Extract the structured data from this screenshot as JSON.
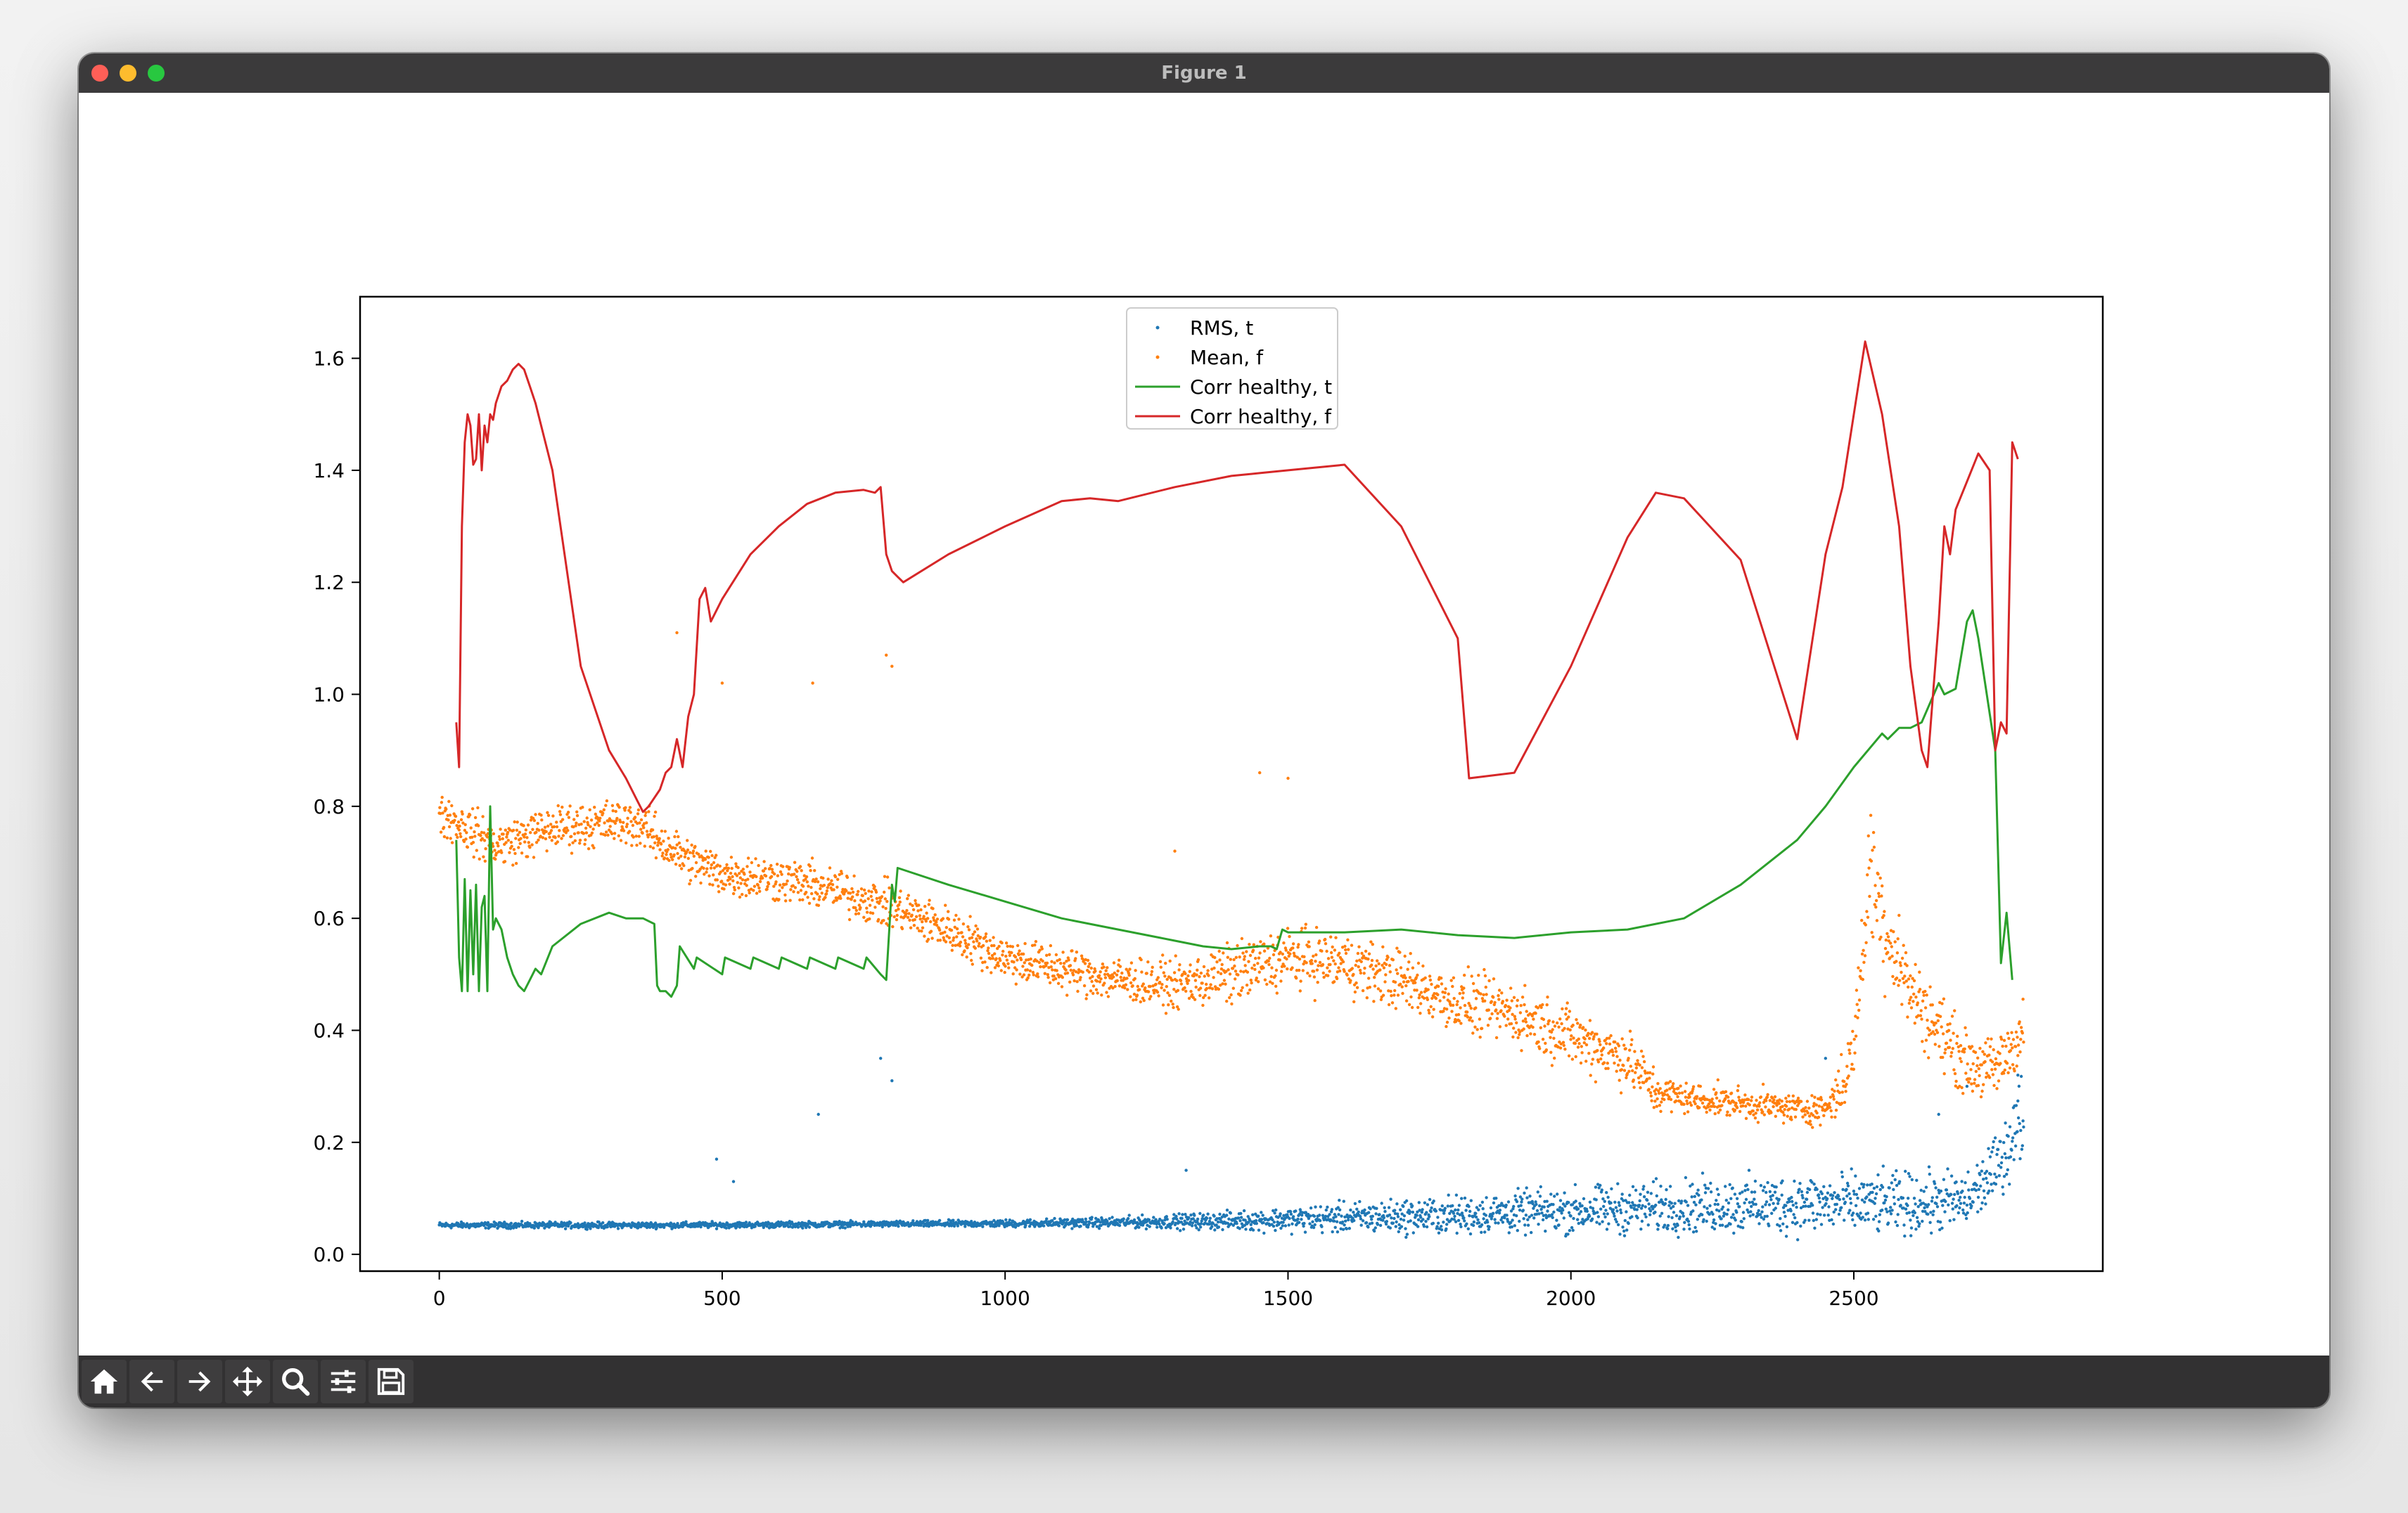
{
  "window": {
    "title": "Figure 1"
  },
  "toolbar": {
    "tools": [
      {
        "name": "home-icon"
      },
      {
        "name": "back-arrow-icon"
      },
      {
        "name": "forward-arrow-icon"
      },
      {
        "name": "pan-move-icon"
      },
      {
        "name": "zoom-magnifier-icon"
      },
      {
        "name": "configure-subplots-icon"
      },
      {
        "name": "save-floppy-icon"
      }
    ]
  },
  "chart_data": {
    "type": "line",
    "title": "",
    "xlabel": "",
    "ylabel": "",
    "xlim": [
      -140,
      2940
    ],
    "ylim": [
      -0.03,
      1.71
    ],
    "xticks": [
      0,
      500,
      1000,
      1500,
      2000,
      2500
    ],
    "yticks": [
      0.0,
      0.2,
      0.4,
      0.6,
      0.8,
      1.0,
      1.2,
      1.4,
      1.6
    ],
    "ytick_labels": [
      "0.0",
      "0.2",
      "0.4",
      "0.6",
      "0.8",
      "1.0",
      "1.2",
      "1.4",
      "1.6"
    ],
    "grid": false,
    "legend_position": "top-center",
    "series": [
      {
        "name": "RMS, t",
        "kind": "scatter",
        "color": "#1f77b4",
        "x": [
          0,
          200,
          400,
          600,
          800,
          1000,
          1200,
          1400,
          1600,
          1800,
          2000,
          2200,
          2400,
          2600,
          2700,
          2750,
          2800
        ],
        "y_mid": [
          0.052,
          0.052,
          0.052,
          0.053,
          0.054,
          0.055,
          0.057,
          0.06,
          0.065,
          0.07,
          0.078,
          0.085,
          0.09,
          0.09,
          0.095,
          0.15,
          0.25
        ],
        "y_spread": [
          0.004,
          0.004,
          0.004,
          0.004,
          0.004,
          0.005,
          0.007,
          0.012,
          0.02,
          0.025,
          0.03,
          0.035,
          0.04,
          0.04,
          0.04,
          0.04,
          0.06
        ]
      },
      {
        "name": "Mean, f",
        "kind": "scatter",
        "color": "#ff7f0e",
        "x": [
          0,
          50,
          100,
          200,
          300,
          350,
          400,
          450,
          500,
          600,
          700,
          800,
          900,
          1000,
          1100,
          1200,
          1300,
          1400,
          1500,
          1600,
          1700,
          1800,
          1900,
          2000,
          2100,
          2150,
          2200,
          2300,
          2400,
          2450,
          2480,
          2500,
          2530,
          2550,
          2600,
          2650,
          2700,
          2750,
          2800
        ],
        "y_mid": [
          0.79,
          0.76,
          0.73,
          0.76,
          0.77,
          0.77,
          0.73,
          0.7,
          0.68,
          0.67,
          0.65,
          0.62,
          0.58,
          0.53,
          0.51,
          0.49,
          0.48,
          0.5,
          0.53,
          0.52,
          0.49,
          0.45,
          0.43,
          0.39,
          0.35,
          0.29,
          0.28,
          0.27,
          0.26,
          0.26,
          0.3,
          0.37,
          0.7,
          0.6,
          0.47,
          0.4,
          0.34,
          0.33,
          0.4
        ],
        "y_spread": [
          0.03,
          0.03,
          0.03,
          0.03,
          0.03,
          0.03,
          0.03,
          0.03,
          0.03,
          0.03,
          0.03,
          0.03,
          0.03,
          0.03,
          0.03,
          0.03,
          0.03,
          0.04,
          0.04,
          0.04,
          0.04,
          0.04,
          0.04,
          0.04,
          0.04,
          0.03,
          0.02,
          0.02,
          0.02,
          0.02,
          0.04,
          0.04,
          0.09,
          0.08,
          0.05,
          0.05,
          0.04,
          0.04,
          0.04
        ]
      },
      {
        "name": "Corr healthy, t",
        "kind": "line",
        "color": "#2ca02c",
        "x": [
          30,
          35,
          40,
          45,
          50,
          55,
          60,
          65,
          70,
          75,
          80,
          85,
          90,
          95,
          100,
          110,
          120,
          130,
          140,
          150,
          160,
          170,
          180,
          200,
          250,
          300,
          330,
          360,
          380,
          385,
          390,
          400,
          410,
          420,
          425,
          450,
          455,
          500,
          505,
          550,
          555,
          600,
          605,
          650,
          655,
          700,
          705,
          750,
          755,
          780,
          790,
          800,
          805,
          810,
          900,
          1000,
          1100,
          1200,
          1300,
          1350,
          1400,
          1450,
          1470,
          1480,
          1490,
          1500,
          1600,
          1700,
          1800,
          1900,
          2000,
          2100,
          2150,
          2200,
          2300,
          2400,
          2450,
          2500,
          2550,
          2560,
          2580,
          2600,
          2620,
          2650,
          2660,
          2680,
          2700,
          2710,
          2720,
          2750,
          2760,
          2770,
          2780
        ],
        "y": [
          0.74,
          0.53,
          0.47,
          0.67,
          0.47,
          0.65,
          0.5,
          0.66,
          0.47,
          0.62,
          0.64,
          0.47,
          0.8,
          0.58,
          0.6,
          0.58,
          0.53,
          0.5,
          0.48,
          0.47,
          0.49,
          0.51,
          0.5,
          0.55,
          0.59,
          0.61,
          0.6,
          0.6,
          0.59,
          0.48,
          0.47,
          0.47,
          0.46,
          0.48,
          0.55,
          0.51,
          0.53,
          0.5,
          0.53,
          0.51,
          0.53,
          0.51,
          0.53,
          0.51,
          0.53,
          0.51,
          0.53,
          0.51,
          0.53,
          0.5,
          0.49,
          0.66,
          0.63,
          0.69,
          0.66,
          0.63,
          0.6,
          0.58,
          0.56,
          0.55,
          0.545,
          0.55,
          0.55,
          0.545,
          0.58,
          0.575,
          0.575,
          0.58,
          0.57,
          0.565,
          0.575,
          0.58,
          0.59,
          0.6,
          0.66,
          0.74,
          0.8,
          0.87,
          0.93,
          0.92,
          0.94,
          0.94,
          0.95,
          1.02,
          1.0,
          1.01,
          1.13,
          1.15,
          1.1,
          0.9,
          0.52,
          0.61,
          0.49
        ]
      },
      {
        "name": "Corr healthy, f",
        "kind": "line",
        "color": "#d62728",
        "x": [
          30,
          35,
          40,
          45,
          50,
          55,
          60,
          65,
          70,
          75,
          80,
          85,
          90,
          95,
          100,
          110,
          120,
          130,
          140,
          150,
          160,
          170,
          200,
          250,
          300,
          330,
          350,
          360,
          370,
          390,
          400,
          410,
          420,
          430,
          440,
          450,
          460,
          470,
          480,
          500,
          550,
          600,
          650,
          700,
          750,
          770,
          780,
          790,
          800,
          810,
          820,
          900,
          1000,
          1100,
          1150,
          1200,
          1300,
          1400,
          1450,
          1500,
          1600,
          1700,
          1800,
          1820,
          1900,
          2000,
          2100,
          2150,
          2200,
          2300,
          2400,
          2450,
          2480,
          2500,
          2520,
          2550,
          2580,
          2600,
          2620,
          2630,
          2640,
          2650,
          2660,
          2670,
          2680,
          2700,
          2720,
          2740,
          2750,
          2760,
          2770,
          2780,
          2790
        ],
        "y": [
          0.95,
          0.87,
          1.3,
          1.45,
          1.5,
          1.48,
          1.41,
          1.42,
          1.5,
          1.4,
          1.48,
          1.45,
          1.5,
          1.49,
          1.52,
          1.55,
          1.56,
          1.58,
          1.59,
          1.58,
          1.55,
          1.52,
          1.4,
          1.05,
          0.9,
          0.85,
          0.81,
          0.79,
          0.8,
          0.83,
          0.86,
          0.87,
          0.92,
          0.87,
          0.96,
          1.0,
          1.17,
          1.19,
          1.13,
          1.17,
          1.25,
          1.3,
          1.34,
          1.36,
          1.365,
          1.36,
          1.37,
          1.25,
          1.22,
          1.21,
          1.2,
          1.25,
          1.3,
          1.345,
          1.35,
          1.345,
          1.37,
          1.39,
          1.395,
          1.4,
          1.41,
          1.3,
          1.1,
          0.85,
          0.86,
          1.05,
          1.28,
          1.36,
          1.35,
          1.24,
          0.92,
          1.25,
          1.37,
          1.5,
          1.63,
          1.5,
          1.3,
          1.05,
          0.9,
          0.87,
          1.0,
          1.13,
          1.3,
          1.25,
          1.33,
          1.38,
          1.43,
          1.4,
          0.9,
          0.95,
          0.93,
          1.45,
          1.42
        ]
      }
    ],
    "outliers": [
      {
        "series": "Mean, f",
        "points": [
          [
            420,
            1.11
          ],
          [
            500,
            1.02
          ],
          [
            660,
            1.02
          ],
          [
            790,
            1.07
          ],
          [
            800,
            1.05
          ],
          [
            1500,
            0.85
          ],
          [
            1300,
            0.72
          ],
          [
            1450,
            0.86
          ]
        ]
      },
      {
        "series": "RMS, t",
        "points": [
          [
            670,
            0.25
          ],
          [
            780,
            0.35
          ],
          [
            800,
            0.31
          ],
          [
            490,
            0.17
          ],
          [
            520,
            0.13
          ],
          [
            1320,
            0.15
          ],
          [
            2450,
            0.35
          ],
          [
            2650,
            0.25
          ],
          [
            2700,
            0.3
          ],
          [
            2790,
            0.32
          ]
        ]
      }
    ]
  }
}
